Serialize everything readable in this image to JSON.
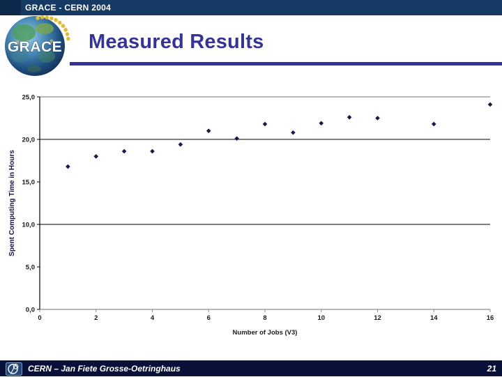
{
  "header": {
    "label": "GRACE - CERN 2004"
  },
  "logo": {
    "text": "GRACE"
  },
  "slide": {
    "title": "Measured Results"
  },
  "footer": {
    "text": "CERN – Jan Fiete Grosse-Oetringhaus",
    "page_number": "21"
  },
  "colors": {
    "header_bar": "#153a63",
    "footer_bar": "#081038",
    "accent": "#333399",
    "marker": "#181850",
    "gridline": "#000000",
    "plot_border": "#8c8c8c",
    "axis_line": "#000000",
    "tick_label": "#1a1a1a",
    "axis_title": "#14144a"
  },
  "chart_data": {
    "type": "scatter",
    "title": "",
    "xlabel": "Number of Jobs (V3)",
    "ylabel": "Spent Computing Time in Hours",
    "xlim": [
      0,
      16
    ],
    "ylim": [
      0,
      25
    ],
    "grid": "horizontal-major",
    "legend": null,
    "marker": "diamond",
    "x_ticks": [
      {
        "value": 0,
        "label": "0"
      },
      {
        "value": 2,
        "label": "2"
      },
      {
        "value": 4,
        "label": "4"
      },
      {
        "value": 6,
        "label": "6"
      },
      {
        "value": 8,
        "label": "8"
      },
      {
        "value": 10,
        "label": "10"
      },
      {
        "value": 12,
        "label": "12"
      },
      {
        "value": 14,
        "label": "14"
      },
      {
        "value": 16,
        "label": "16"
      }
    ],
    "y_ticks": [
      {
        "value": 0,
        "label": "0,0"
      },
      {
        "value": 5,
        "label": "5,0"
      },
      {
        "value": 10,
        "label": "10,0"
      },
      {
        "value": 15,
        "label": "15,0"
      },
      {
        "value": 20,
        "label": "20,0"
      },
      {
        "value": 25,
        "label": "25,0"
      }
    ],
    "gridlines_y": [
      10,
      20
    ],
    "points": [
      {
        "x": 1,
        "y": 16.8
      },
      {
        "x": 2,
        "y": 18.0
      },
      {
        "x": 3,
        "y": 18.6
      },
      {
        "x": 4,
        "y": 18.6
      },
      {
        "x": 5,
        "y": 19.4
      },
      {
        "x": 6,
        "y": 21.0
      },
      {
        "x": 7,
        "y": 20.1
      },
      {
        "x": 8,
        "y": 21.8
      },
      {
        "x": 9,
        "y": 20.8
      },
      {
        "x": 10,
        "y": 21.9
      },
      {
        "x": 11,
        "y": 22.6
      },
      {
        "x": 12,
        "y": 22.5
      },
      {
        "x": 14,
        "y": 21.8
      },
      {
        "x": 16,
        "y": 24.1
      }
    ]
  }
}
